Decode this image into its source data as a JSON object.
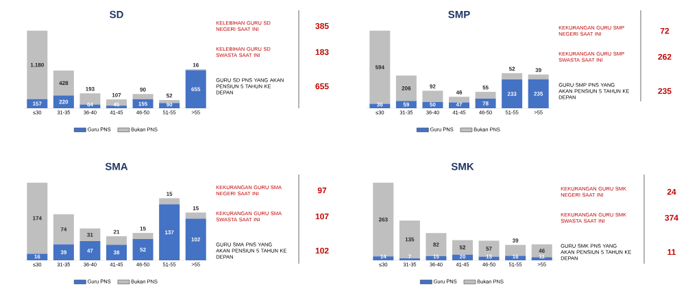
{
  "chart_data": [
    {
      "type": "bar",
      "title": "SD",
      "stacked": true,
      "data_labels": true,
      "legend": "bottom",
      "categories": [
        "≤30",
        "31-35",
        "36-40",
        "41-45",
        "46-50",
        "51-55",
        ">55"
      ],
      "series": [
        {
          "name": "Guru PNS",
          "color": "#4472c4",
          "values": [
            157,
            220,
            64,
            45,
            155,
            90,
            655
          ]
        },
        {
          "name": "Bukan PNS",
          "color": "#bfbfbf",
          "values": [
            1180,
            428,
            193,
            107,
            90,
            52,
            16
          ],
          "value_labels": [
            "1.180",
            "428",
            "193",
            "107",
            "90",
            "52",
            "16"
          ]
        }
      ]
    },
    {
      "type": "other",
      "annotations": [
        "KELEBIHAN GURU SD NEGERI SAAT INI",
        "385",
        "KELEBIHAN GURU SD SWASTA SAAT INI",
        "183",
        "GURU SD PNS YANG AKAN PENSIUN 5 TAHUN KE DEPAN",
        "655"
      ]
    },
    {
      "type": "bar",
      "title": "SMP",
      "stacked": true,
      "data_labels": true,
      "legend": "bottom",
      "categories": [
        "≤30",
        "31-35",
        "36-40",
        "41-45",
        "46-50",
        "51-55",
        ">55"
      ],
      "series": [
        {
          "name": "Guru PNS",
          "color": "#4472c4",
          "values": [
            36,
            59,
            50,
            47,
            78,
            233,
            235
          ]
        },
        {
          "name": "Bukan PNS",
          "color": "#bfbfbf",
          "values": [
            594,
            206,
            92,
            46,
            55,
            52,
            39
          ]
        }
      ]
    },
    {
      "type": "other",
      "annotations": [
        "KEKURANGAN GURU SMP NEGERI SAAT INI",
        "72",
        "KEKURANGAN GURU SMP SWASTA SAAT INI",
        "262",
        "GURU SMP PNS YANG AKAN PENSIUN 5 TAHUN KE DEPAN",
        "235"
      ]
    },
    {
      "type": "bar",
      "title": "SMA",
      "stacked": true,
      "data_labels": true,
      "legend": "bottom",
      "categories": [
        "≤30",
        "31-35",
        "36-40",
        "41-45",
        "46-50",
        "51-55",
        ">55"
      ],
      "series": [
        {
          "name": "Guru PNS",
          "color": "#4472c4",
          "values": [
            16,
            39,
            47,
            38,
            52,
            137,
            102
          ]
        },
        {
          "name": "Bukan PNS",
          "color": "#bfbfbf",
          "values": [
            174,
            74,
            31,
            21,
            15,
            15,
            15
          ]
        }
      ]
    },
    {
      "type": "other",
      "annotations": [
        "KEKURANGAN GURU SMA NEGERI SAAT INI",
        "97",
        "KEKURANGAN GURU SMA SWASTA SAAT INI",
        "107",
        "GURU SMA PNS YANG AKAN PENSIUN 5 TAHUN KE DEPAN",
        "102"
      ]
    },
    {
      "type": "bar",
      "title": "SMK",
      "stacked": true,
      "data_labels": true,
      "legend": "bottom",
      "categories": [
        "≤30",
        "31-35",
        "36-40",
        "41-45",
        "46-50",
        "51-55",
        ">55"
      ],
      "series": [
        {
          "name": "Guru PNS",
          "color": "#4472c4",
          "values": [
            14,
            7,
            15,
            20,
            13,
            16,
            11
          ]
        },
        {
          "name": "Bukan PNS",
          "color": "#bfbfbf",
          "values": [
            263,
            135,
            82,
            52,
            57,
            39,
            46
          ]
        }
      ]
    },
    {
      "type": "other",
      "annotations": [
        "KEKURANGAN GURU SMK NEGERI SAAT INI",
        "24",
        "KEKURANGAN GURU SMK SWASTA SAAT INI",
        "374",
        "GURU SMK PNS YANG AKAN PENSIUN 5 TAHUN KE DEPAN",
        "11"
      ]
    }
  ]
}
